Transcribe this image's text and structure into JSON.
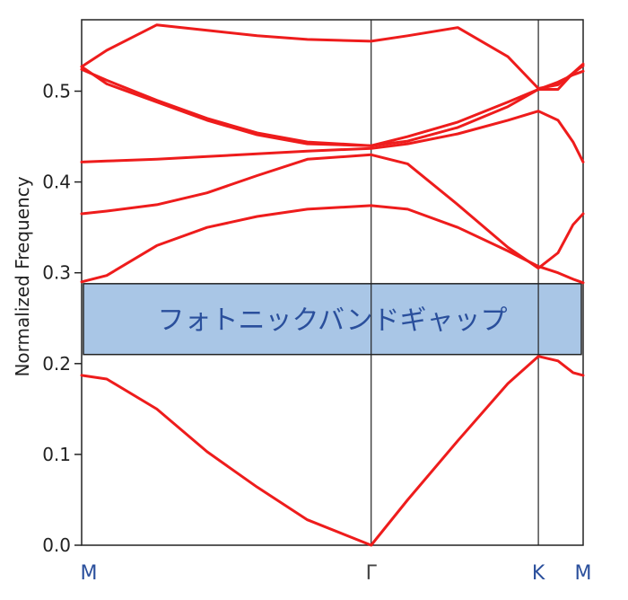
{
  "chart_data": {
    "type": "line",
    "ylabel": "Normalized Frequency",
    "ylim": [
      0,
      0.58
    ],
    "yticks": [
      "0.0",
      "0.1",
      "0.2",
      "0.3",
      "0.4",
      "0.5"
    ],
    "k_points": [
      "M",
      "Γ",
      "K",
      "M"
    ],
    "k_positions": [
      0,
      0.5773,
      0.9107,
      1.0
    ],
    "bandgap": {
      "label": "フォトニックバンドギャップ",
      "ymin": 0.21,
      "ymax": 0.288,
      "fill": "#a9c6e6",
      "text_color": "#2a4f9c"
    },
    "band_color": "#ee1c1c",
    "series": [
      {
        "x": [
          0,
          0.05,
          0.15,
          0.25,
          0.35,
          0.45,
          0.5773,
          0.65,
          0.75,
          0.85,
          0.9107,
          0.95,
          0.98,
          1.0
        ],
        "values": [
          0.187,
          0.183,
          0.15,
          0.103,
          0.064,
          0.028,
          0.0,
          0.05,
          0.115,
          0.178,
          0.208,
          0.203,
          0.19,
          0.187
        ]
      },
      {
        "x": [
          0,
          0.05,
          0.15,
          0.25,
          0.35,
          0.45,
          0.5773,
          0.65,
          0.75,
          0.85,
          0.9107,
          0.95,
          0.98,
          1.0
        ],
        "values": [
          0.29,
          0.297,
          0.33,
          0.35,
          0.362,
          0.37,
          0.374,
          0.37,
          0.35,
          0.324,
          0.307,
          0.3,
          0.293,
          0.289
        ]
      },
      {
        "x": [
          0,
          0.05,
          0.15,
          0.25,
          0.35,
          0.45,
          0.5773,
          0.65,
          0.75,
          0.85,
          0.9107,
          0.95,
          0.98,
          1.0
        ],
        "values": [
          0.365,
          0.368,
          0.375,
          0.388,
          0.407,
          0.425,
          0.43,
          0.42,
          0.375,
          0.328,
          0.305,
          0.322,
          0.353,
          0.365
        ]
      },
      {
        "x": [
          0,
          0.05,
          0.15,
          0.25,
          0.35,
          0.45,
          0.5773,
          0.65,
          0.75,
          0.85,
          0.9107,
          0.95,
          0.98,
          1.0
        ],
        "values": [
          0.422,
          0.423,
          0.425,
          0.428,
          0.431,
          0.434,
          0.437,
          0.442,
          0.453,
          0.468,
          0.478,
          0.468,
          0.444,
          0.422
        ]
      },
      {
        "x": [
          0,
          0.05,
          0.15,
          0.25,
          0.35,
          0.45,
          0.5773,
          0.65,
          0.75,
          0.85,
          0.9107,
          0.95,
          0.98,
          1.0
        ],
        "values": [
          0.524,
          0.512,
          0.49,
          0.47,
          0.454,
          0.444,
          0.44,
          0.445,
          0.46,
          0.483,
          0.502,
          0.51,
          0.518,
          0.522
        ]
      },
      {
        "x": [
          0,
          0.05,
          0.15,
          0.25,
          0.35,
          0.45,
          0.5773,
          0.65,
          0.75,
          0.85,
          0.9107,
          0.95,
          0.98,
          1.0
        ],
        "values": [
          0.527,
          0.508,
          0.488,
          0.468,
          0.452,
          0.442,
          0.44,
          0.45,
          0.466,
          0.488,
          0.502,
          0.502,
          0.52,
          0.53
        ]
      },
      {
        "x": [
          0,
          0.05,
          0.15,
          0.25,
          0.35,
          0.45,
          0.5773,
          0.65,
          0.75,
          0.85,
          0.9107,
          0.95,
          0.98,
          1.0
        ],
        "values": [
          0.527,
          0.545,
          0.573,
          0.567,
          0.561,
          0.557,
          0.555,
          0.561,
          0.57,
          0.538,
          0.503,
          0.507,
          0.52,
          0.528
        ]
      }
    ]
  }
}
